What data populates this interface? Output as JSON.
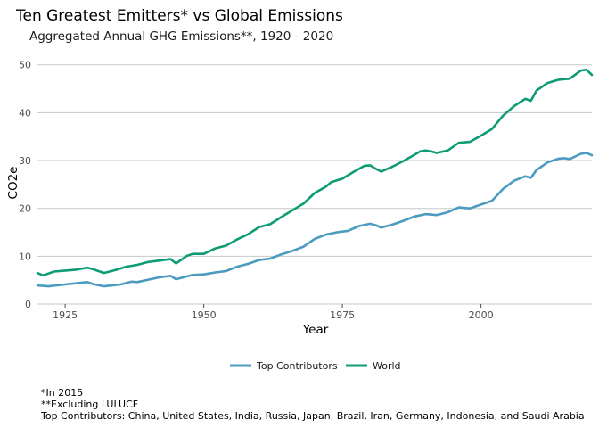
{
  "chart_data": {
    "type": "line",
    "title": "Ten Greatest Emitters* vs Global Emissions",
    "subtitle": "Aggregated Annual GHG Emissions**, 1920 - 2020",
    "xlabel": "Year",
    "ylabel": "CO2e",
    "xlim": [
      1920,
      2020
    ],
    "ylim": [
      0,
      52
    ],
    "xticks": [
      1925,
      1950,
      1975,
      2000
    ],
    "yticks": [
      0,
      10,
      20,
      30,
      40,
      50
    ],
    "grid": "horizontal",
    "legend_position": "bottom",
    "series": [
      {
        "name": "Top Contributors",
        "color": "#4a9bbf",
        "x": [
          1920,
          1922,
          1925,
          1928,
          1929,
          1930,
          1932,
          1935,
          1937,
          1938,
          1940,
          1942,
          1944,
          1945,
          1947,
          1948,
          1950,
          1952,
          1954,
          1956,
          1958,
          1960,
          1962,
          1964,
          1966,
          1968,
          1970,
          1972,
          1974,
          1976,
          1978,
          1980,
          1981,
          1982,
          1984,
          1986,
          1988,
          1990,
          1992,
          1994,
          1996,
          1997,
          1998,
          2000,
          2002,
          2004,
          2006,
          2008,
          2009,
          2010,
          2012,
          2014,
          2015,
          2016,
          2018,
          2019,
          2020
        ],
        "values": [
          3.9,
          3.7,
          4.1,
          4.5,
          4.6,
          4.2,
          3.7,
          4.1,
          4.7,
          4.6,
          5.1,
          5.6,
          5.9,
          5.2,
          5.8,
          6.1,
          6.2,
          6.6,
          6.9,
          7.8,
          8.4,
          9.2,
          9.5,
          10.4,
          11.1,
          12.0,
          13.6,
          14.5,
          15.0,
          15.3,
          16.3,
          16.8,
          16.5,
          16.0,
          16.6,
          17.4,
          18.3,
          18.8,
          18.6,
          19.2,
          20.2,
          20.1,
          20.0,
          20.8,
          21.6,
          24.1,
          25.8,
          26.7,
          26.4,
          28.0,
          29.6,
          30.4,
          30.5,
          30.3,
          31.4,
          31.6,
          31.1
        ]
      },
      {
        "name": "World",
        "color": "#0e9b76",
        "x": [
          1920,
          1921,
          1923,
          1925,
          1927,
          1929,
          1930,
          1932,
          1934,
          1936,
          1938,
          1940,
          1942,
          1944,
          1945,
          1947,
          1948,
          1950,
          1952,
          1954,
          1956,
          1958,
          1960,
          1962,
          1964,
          1966,
          1968,
          1970,
          1972,
          1973,
          1975,
          1977,
          1979,
          1980,
          1981,
          1982,
          1984,
          1986,
          1988,
          1989,
          1990,
          1991,
          1992,
          1994,
          1996,
          1998,
          2000,
          2002,
          2004,
          2006,
          2008,
          2009,
          2010,
          2012,
          2014,
          2015,
          2016,
          2018,
          2019,
          2020
        ],
        "values": [
          6.5,
          6.0,
          6.8,
          7.0,
          7.2,
          7.6,
          7.3,
          6.5,
          7.1,
          7.8,
          8.2,
          8.8,
          9.1,
          9.4,
          8.5,
          10.1,
          10.5,
          10.5,
          11.6,
          12.2,
          13.5,
          14.6,
          16.1,
          16.7,
          18.2,
          19.6,
          21.0,
          23.2,
          24.5,
          25.5,
          26.2,
          27.6,
          28.9,
          29.0,
          28.3,
          27.7,
          28.7,
          29.9,
          31.2,
          31.9,
          32.1,
          31.9,
          31.6,
          32.1,
          33.7,
          33.9,
          35.2,
          36.6,
          39.4,
          41.4,
          42.9,
          42.5,
          44.6,
          46.2,
          46.9,
          47.0,
          47.1,
          48.8,
          49.0,
          47.9
        ]
      }
    ]
  },
  "footnotes": [
    "*In 2015",
    "**Excluding LULUCF",
    "Top Contributors: China, United States, India, Russia, Japan, Brazil, Iran, Germany, Indonesia, and Saudi Arabia"
  ]
}
